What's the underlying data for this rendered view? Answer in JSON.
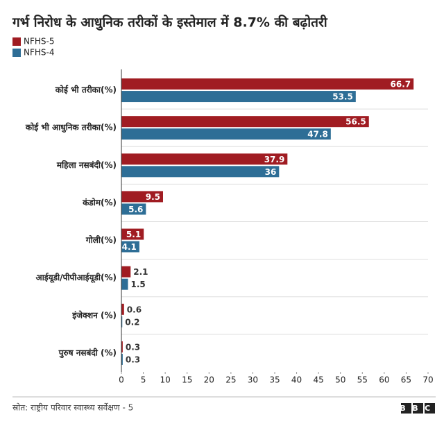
{
  "chart_data": {
    "type": "hbar",
    "title": "गर्भ निरोध के आधुनिक तरीकों के इस्तेमाल में 8.7% की बढ़ोतरी",
    "categories": [
      "कोई भी तरीका(%)",
      "कोई भी आधुनिक तरीका(%)",
      "महिला नसबंदी(%)",
      "कंडोम(%)",
      "गोली(%)",
      "आईयूडी/पीपीआईयूडी(%)",
      "इंजेक्शन (%)",
      "पुरुष नसबंदी (%)"
    ],
    "series": [
      {
        "name": "NFHS-5",
        "color": "#a01c22",
        "values": [
          66.7,
          56.5,
          37.9,
          9.5,
          5.1,
          2.1,
          0.6,
          0.3
        ]
      },
      {
        "name": "NFHS-4",
        "color": "#2e6e96",
        "values": [
          53.5,
          47.8,
          36,
          5.6,
          4.1,
          1.5,
          0.2,
          0.3
        ]
      }
    ],
    "xlim": [
      0,
      70
    ],
    "xticks": [
      0,
      5,
      10,
      15,
      20,
      25,
      30,
      35,
      40,
      45,
      50,
      55,
      60,
      65,
      70
    ],
    "source": "स्रोत: राष्ट्रीय परिवार स्वास्थ्य सर्वेक्षण - 5",
    "logo": "BBC"
  }
}
